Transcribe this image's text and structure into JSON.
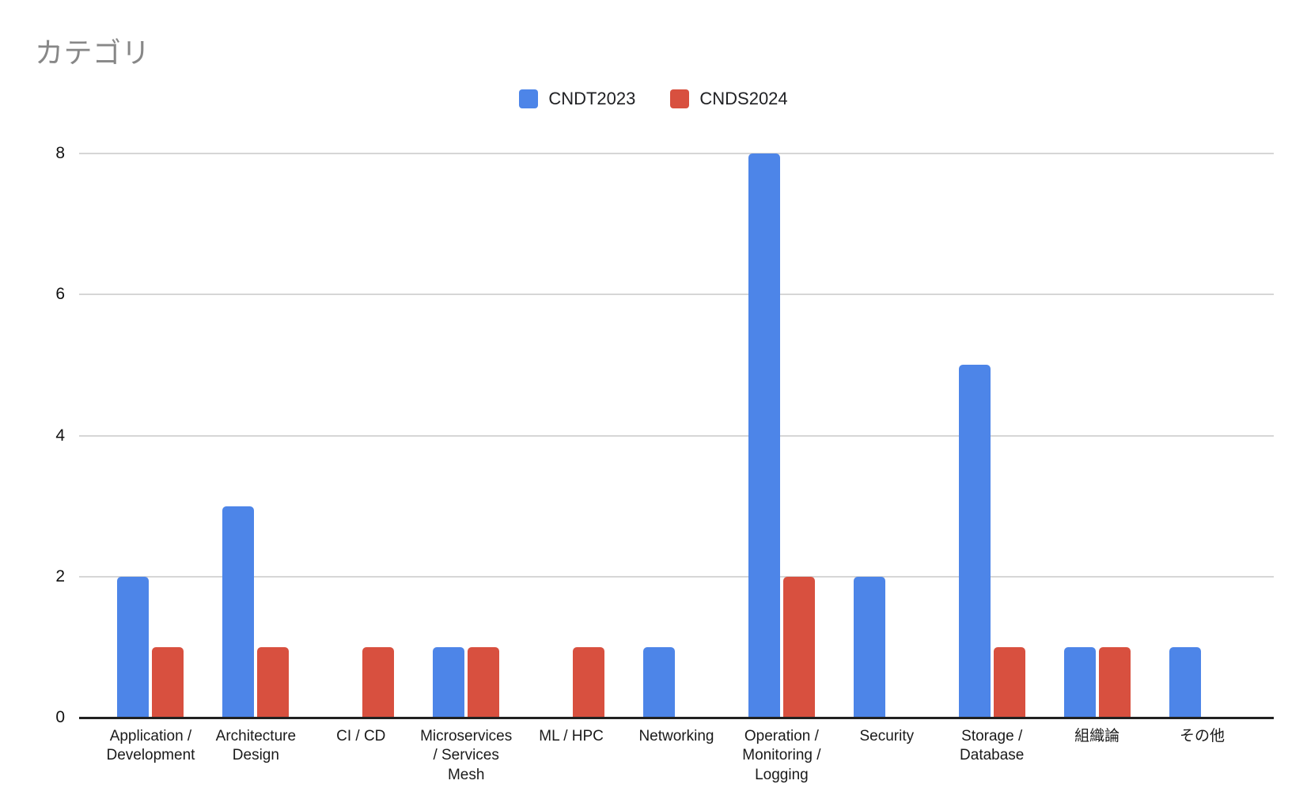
{
  "chart_title": "カテゴリ",
  "legend": {
    "items": [
      {
        "label": "CNDT2023",
        "color": "#4d85e8"
      },
      {
        "label": "CNDS2024",
        "color": "#d8503f"
      }
    ]
  },
  "chart_data": {
    "type": "bar",
    "title": "カテゴリ",
    "categories": [
      "Application /\nDevelopment",
      "Architecture\nDesign",
      "CI / CD",
      "Microservices\n/ Services\nMesh",
      "ML / HPC",
      "Networking",
      "Operation /\nMonitoring /\nLogging",
      "Security",
      "Storage /\nDatabase",
      "組織論",
      "その他"
    ],
    "series": [
      {
        "name": "CNDT2023",
        "color": "#4d85e8",
        "values": [
          2,
          3,
          0,
          1,
          0,
          1,
          8,
          2,
          5,
          1,
          1
        ]
      },
      {
        "name": "CNDS2024",
        "color": "#d8503f",
        "values": [
          1,
          1,
          1,
          1,
          1,
          0,
          2,
          0,
          1,
          1,
          0
        ]
      }
    ],
    "xlabel": "",
    "ylabel": "",
    "ylim": [
      0,
      8
    ],
    "yticks": [
      0,
      2,
      4,
      6,
      8
    ],
    "grid": true,
    "legend_position": "top",
    "colors": {
      "gridline": "#d6d6d6",
      "baseline": "#212121",
      "title_text": "#878787",
      "axis_text": "#1a1a1a"
    }
  }
}
